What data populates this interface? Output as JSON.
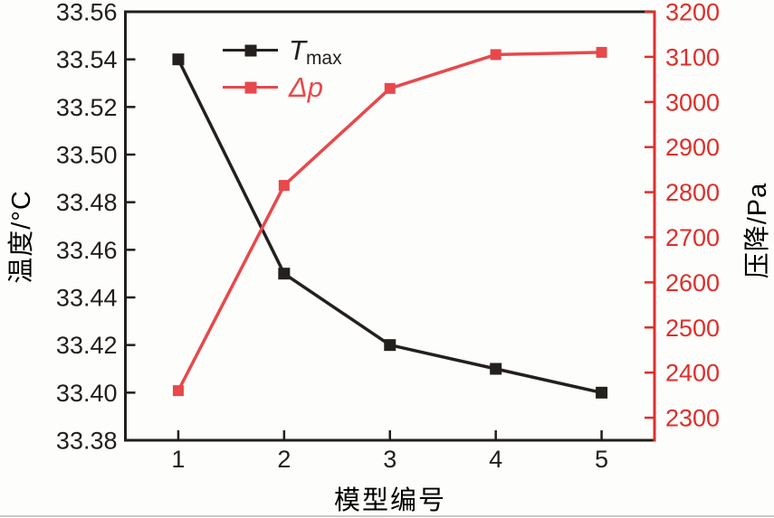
{
  "figure": {
    "background": "#fdfdfb",
    "scan_edge_color": "#c9c9c9"
  },
  "chart_data": {
    "type": "line",
    "xlabel": "模型编号",
    "ylabel_left": "温度/°C",
    "ylabel_right": "压降/Pa",
    "x": [
      1,
      2,
      3,
      4,
      5
    ],
    "x_range": [
      0.5,
      5.5
    ],
    "x_ticks": [
      1,
      2,
      3,
      4,
      5
    ],
    "x_tick_labels": [
      "1",
      "2",
      "3",
      "4",
      "5"
    ],
    "left_axis": {
      "range": [
        33.38,
        33.56
      ],
      "ticks": [
        33.38,
        33.4,
        33.42,
        33.44,
        33.46,
        33.48,
        33.5,
        33.52,
        33.54,
        33.56
      ],
      "tick_labels": [
        "33.38",
        "33.40",
        "33.42",
        "33.44",
        "33.46",
        "33.48",
        "33.50",
        "33.52",
        "33.54",
        "33.56"
      ],
      "color": "#211e1c"
    },
    "right_axis": {
      "range": [
        2250,
        3200
      ],
      "ticks": [
        2300,
        2400,
        2500,
        2600,
        2700,
        2800,
        2900,
        3000,
        3100,
        3200
      ],
      "tick_labels": [
        "2300",
        "2400",
        "2500",
        "2600",
        "2700",
        "2800",
        "2900",
        "3000",
        "3100",
        "3200"
      ],
      "color": "#dd2f2b"
    },
    "series": [
      {
        "name": "T_max",
        "legend_main": "T",
        "legend_sub": "max",
        "axis": "left",
        "color": "#23201e",
        "marker": "square",
        "marker_size": 13,
        "values": [
          33.54,
          33.45,
          33.42,
          33.41,
          33.4
        ]
      },
      {
        "name": "delta-p",
        "legend_main": "Δp",
        "legend_sub": "",
        "axis": "right",
        "color": "#e8484b",
        "marker": "square",
        "marker_size": 12,
        "values": [
          2360,
          2815,
          3030,
          3105,
          3110
        ]
      }
    ],
    "grid": false,
    "legend_position": "inside-top-left"
  }
}
